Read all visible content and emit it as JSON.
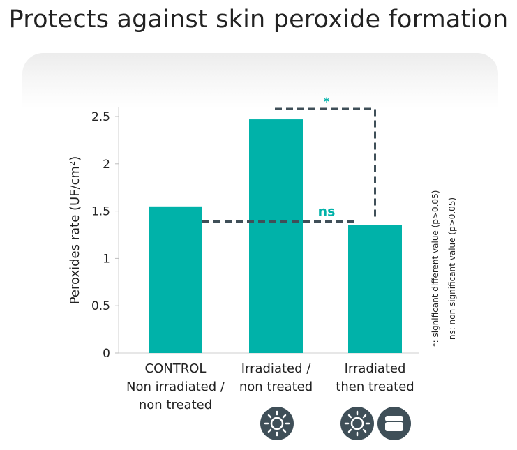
{
  "title": "Protects against skin peroxide formation",
  "chart_data": {
    "type": "bar",
    "ylabel": "Peroxides rate (UF/cm²)",
    "ylim": [
      0,
      2.5
    ],
    "yticks": [
      "0",
      "0.5",
      "1",
      "1.5",
      "2",
      "2.5"
    ],
    "categories": [
      {
        "lines": [
          "CONTROL",
          "Non irradiated /",
          "non treated"
        ]
      },
      {
        "lines": [
          "Irradiated /",
          "non treated"
        ]
      },
      {
        "lines": [
          "Irradiated",
          "then treated"
        ]
      }
    ],
    "values": [
      1.55,
      2.47,
      1.35
    ],
    "bar_color": "#00b2a9",
    "annotations": {
      "significant_marker": "*",
      "ns_marker": "ns",
      "line_color": "#3f4f58"
    },
    "footnotes": [
      "*: significant different value (p>0.05)",
      "ns: non significant value (p>0.05)"
    ]
  },
  "icons": {
    "irradiated": "sun-icon",
    "treated": "cream-jar-icon",
    "color": "#3f4f58"
  }
}
